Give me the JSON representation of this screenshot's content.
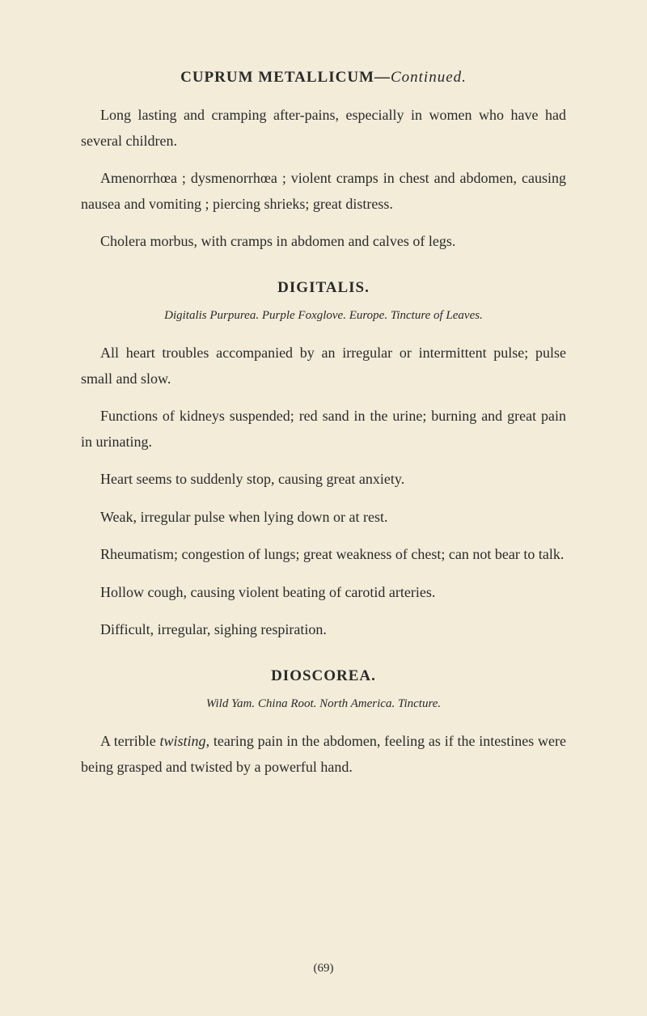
{
  "header": {
    "title_bold": "CUPRUM METALLICUM—",
    "title_italic": "Continued."
  },
  "section1": {
    "para1": "Long lasting and cramping after-pains, especially in women who have had several children.",
    "para2": "Amenorrhœa ; dysmenorrhœa ; violent cramps in chest and abdomen, causing nausea and vomiting ; piercing shrieks; great distress.",
    "para3": "Cholera morbus, with cramps in abdomen and calves of legs."
  },
  "section2": {
    "title": "DIGITALIS.",
    "subtitle": "Digitalis Purpurea. Purple Foxglove. Europe. Tincture of Leaves.",
    "para1": "All heart troubles accompanied by an irregular or intermittent pulse; pulse small and slow.",
    "para2": "Functions of kidneys suspended; red sand in the urine; burning and great pain in urinating.",
    "para3": "Heart seems to suddenly stop, causing great anx­iety.",
    "para4": "Weak, irregular pulse when lying down or at rest.",
    "para5": "Rheumatism; congestion of lungs; great weakness of chest; can not bear to talk.",
    "para6": "Hollow cough, causing violent beating of carotid arteries.",
    "para7": "Difficult, irregular, sighing respiration."
  },
  "section3": {
    "title": "DIOSCOREA.",
    "subtitle": "Wild Yam. China Root. North America. Tincture.",
    "para1_part1": "A terrible ",
    "para1_italic": "twisting",
    "para1_part2": ", tearing pain in the abdomen, feeling as if the intestines were being grasped and twisted by a powerful hand."
  },
  "page_number": "(69)"
}
